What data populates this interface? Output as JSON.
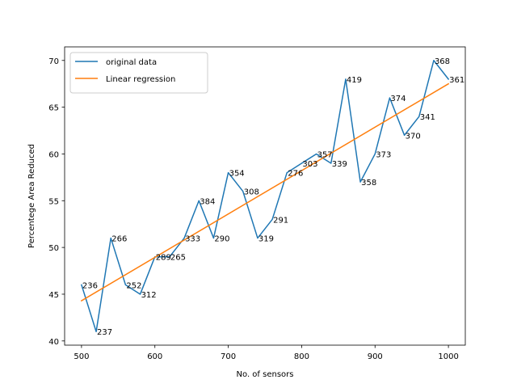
{
  "chart_data": {
    "type": "line",
    "title": "",
    "xlabel": "No. of sensors",
    "ylabel": "Percentege Area Reduced",
    "xlim": [
      477,
      1023
    ],
    "ylim": [
      39.55,
      71.45
    ],
    "xticks": [
      500,
      600,
      700,
      800,
      900,
      1000
    ],
    "yticks": [
      40,
      45,
      50,
      55,
      60,
      65,
      70
    ],
    "grid": false,
    "legend_position": "top-left",
    "series": [
      {
        "name": "original data",
        "color": "#1f77b4",
        "x": [
          500,
          520,
          540,
          560,
          580,
          600,
          620,
          640,
          660,
          680,
          700,
          720,
          740,
          760,
          780,
          800,
          820,
          840,
          860,
          880,
          900,
          920,
          940,
          960,
          980,
          1000
        ],
        "y": [
          46,
          41,
          51,
          46,
          45,
          49,
          49,
          51,
          55,
          51,
          58,
          56,
          51,
          53,
          58,
          59,
          60,
          59,
          68,
          57,
          60,
          66,
          62,
          64,
          70,
          68
        ],
        "point_labels": [
          "236",
          "237",
          "266",
          "252",
          "312",
          "289",
          "265",
          "333",
          "384",
          "290",
          "354",
          "308",
          "319",
          "291",
          "276",
          "303",
          "357",
          "339",
          "419",
          "358",
          "373",
          "374",
          "370",
          "341",
          "368",
          "361"
        ]
      },
      {
        "name": "Linear regression",
        "color": "#ff7f0e",
        "x": [
          500,
          1000
        ],
        "y": [
          44.3,
          67.5
        ]
      }
    ]
  }
}
